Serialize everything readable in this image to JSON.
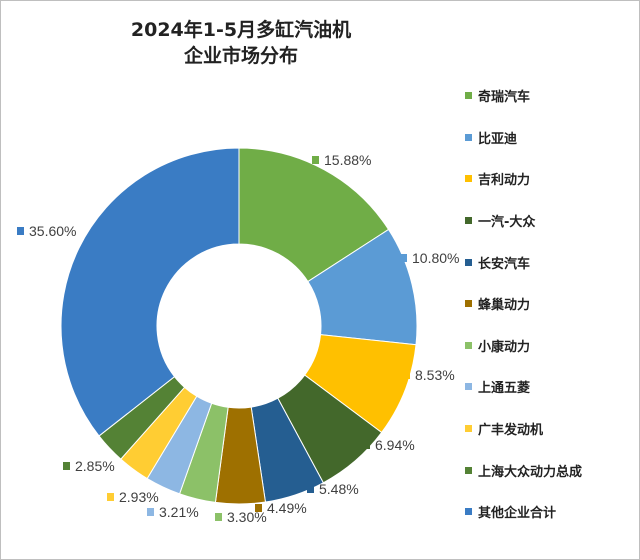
{
  "chart_data": {
    "type": "pie",
    "variant": "donut",
    "title_line1": "2024年1-5月多缸汽油机",
    "title_line2": "企业市场分布",
    "legend_position": "right",
    "categories": [
      "奇瑞汽车",
      "比亚迪",
      "吉利动力",
      "一汽-大众",
      "长安汽车",
      "蜂巢动力",
      "小康动力",
      "上通五菱",
      "广丰发动机",
      "上海大众动力总成",
      "其他企业合计"
    ],
    "values": [
      15.88,
      10.8,
      8.53,
      6.94,
      5.48,
      4.49,
      3.3,
      3.21,
      2.93,
      2.85,
      35.6
    ],
    "labels": [
      "15.88%",
      "10.80%",
      "8.53%",
      "6.94%",
      "5.48%",
      "4.49%",
      "3.30%",
      "3.21%",
      "2.93%",
      "2.85%",
      "35.60%"
    ],
    "colors": [
      "#70ad47",
      "#5b9bd5",
      "#ffc000",
      "#43682b",
      "#255e91",
      "#9e7000",
      "#8cc168",
      "#8db7e3",
      "#ffcd33",
      "#548235",
      "#3a7cc4"
    ]
  }
}
